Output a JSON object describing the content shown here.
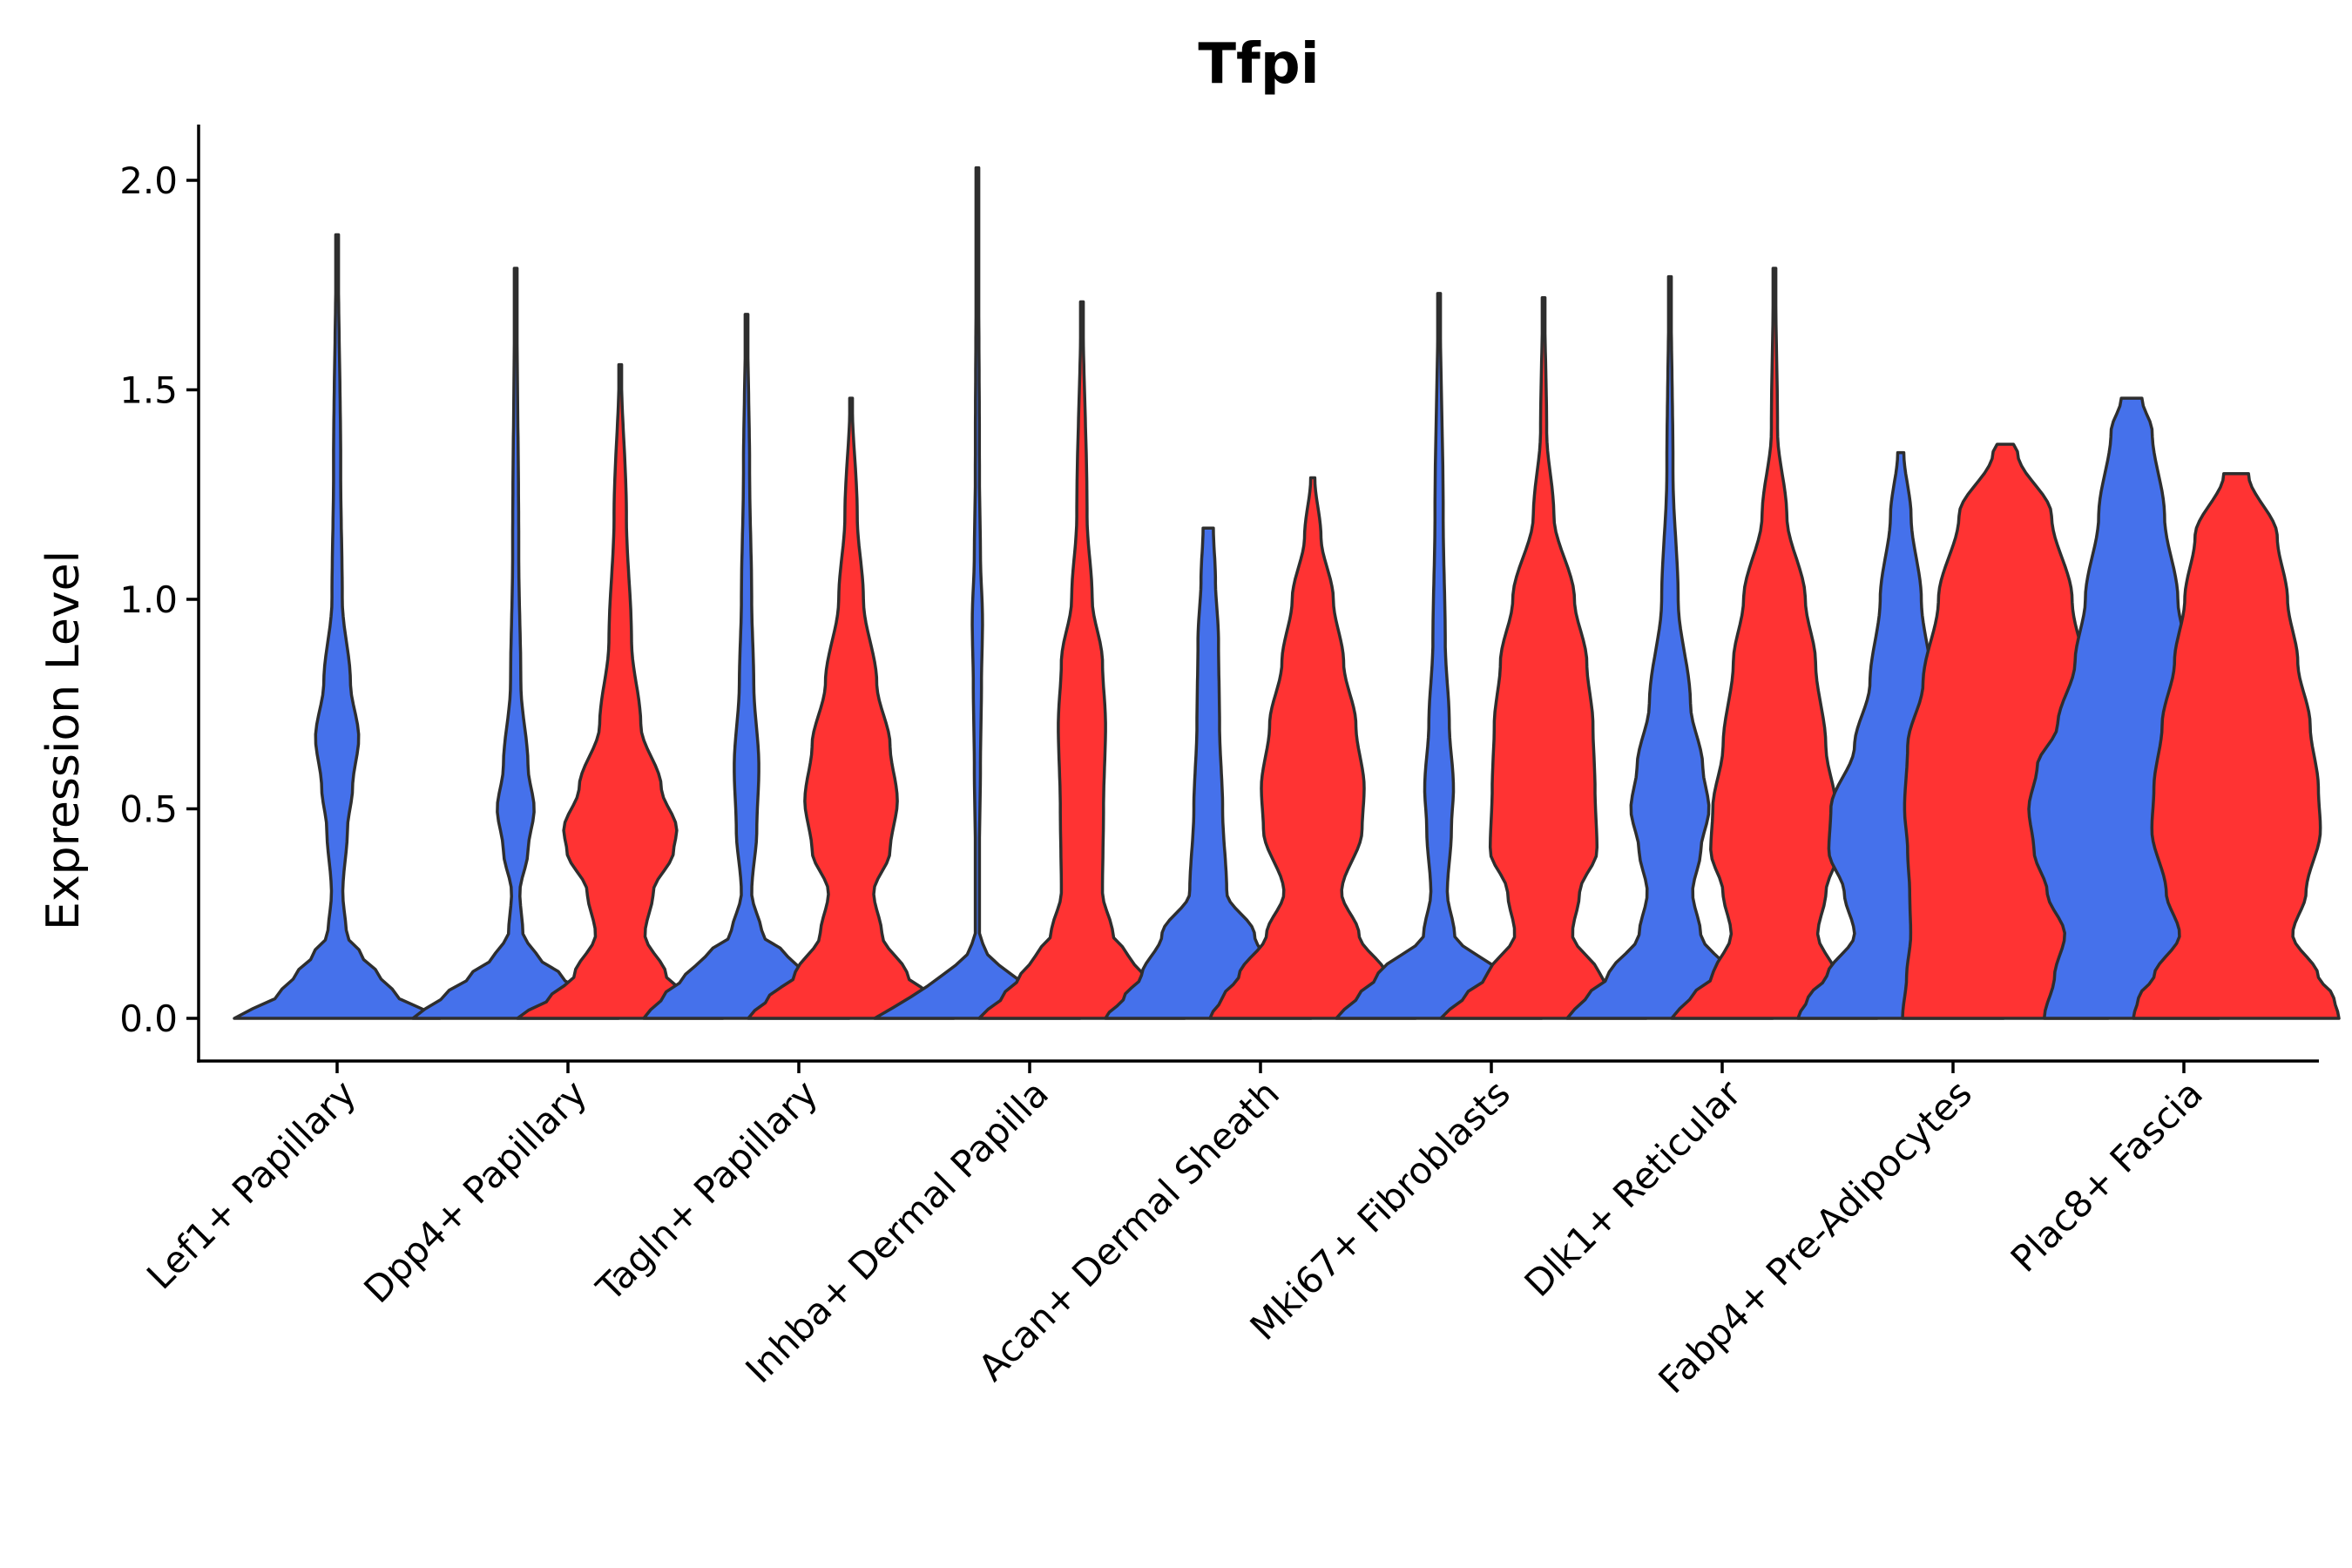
{
  "chart_data": {
    "type": "violin",
    "title": "Tfpi",
    "xlabel": "",
    "ylabel": "Expression Level",
    "ylim": [
      -0.1,
      2.13
    ],
    "yticks": [
      "0.0",
      "0.5",
      "1.0",
      "1.5",
      "2.0"
    ],
    "ytick_values": [
      0.0,
      0.5,
      1.0,
      1.5,
      2.0
    ],
    "groups": [
      "blue",
      "red"
    ],
    "colors": {
      "blue": "#4571EB",
      "red": "#FF3333",
      "outline": "#2e2e2e"
    },
    "categories": [
      {
        "label": "Lef1+ Papillary",
        "violins": [
          {
            "group": "blue",
            "max": 1.87,
            "profile": [
              [
                0,
                1.0
              ],
              [
                0.05,
                0.6
              ],
              [
                0.1,
                0.42
              ],
              [
                0.15,
                0.24
              ],
              [
                0.2,
                0.09
              ],
              [
                0.3,
                0.055
              ],
              [
                0.45,
                0.1
              ],
              [
                0.55,
                0.15
              ],
              [
                0.67,
                0.21
              ],
              [
                0.8,
                0.13
              ],
              [
                1.0,
                0.05
              ],
              [
                1.3,
                0.035
              ],
              [
                1.87,
                0.01
              ]
            ]
          }
        ]
      },
      {
        "label": "Dpp4+ Papillary",
        "violins": [
          {
            "group": "blue",
            "max": 1.79,
            "profile": [
              [
                0,
                1.0
              ],
              [
                0.05,
                0.72
              ],
              [
                0.1,
                0.45
              ],
              [
                0.15,
                0.2
              ],
              [
                0.2,
                0.07
              ],
              [
                0.3,
                0.04
              ],
              [
                0.4,
                0.12
              ],
              [
                0.5,
                0.18
              ],
              [
                0.6,
                0.12
              ],
              [
                0.8,
                0.05
              ],
              [
                1.1,
                0.03
              ],
              [
                1.79,
                0.01
              ]
            ]
          },
          {
            "group": "red",
            "max": 1.56,
            "profile": [
              [
                0,
                1.0
              ],
              [
                0.05,
                0.68
              ],
              [
                0.1,
                0.45
              ],
              [
                0.2,
                0.24
              ],
              [
                0.3,
                0.32
              ],
              [
                0.4,
                0.52
              ],
              [
                0.45,
                0.55
              ],
              [
                0.55,
                0.4
              ],
              [
                0.7,
                0.2
              ],
              [
                0.9,
                0.11
              ],
              [
                1.2,
                0.06
              ],
              [
                1.56,
                0.01
              ]
            ]
          }
        ]
      },
      {
        "label": "Tagln+ Papillary",
        "violins": [
          {
            "group": "blue",
            "max": 1.68,
            "profile": [
              [
                0,
                1.0
              ],
              [
                0.05,
                0.82
              ],
              [
                0.1,
                0.6
              ],
              [
                0.15,
                0.4
              ],
              [
                0.2,
                0.15
              ],
              [
                0.3,
                0.05
              ],
              [
                0.45,
                0.1
              ],
              [
                0.6,
                0.12
              ],
              [
                0.8,
                0.07
              ],
              [
                1.0,
                0.05
              ],
              [
                1.3,
                0.03
              ],
              [
                1.68,
                0.01
              ]
            ]
          },
          {
            "group": "red",
            "max": 1.48,
            "profile": [
              [
                0,
                1.0
              ],
              [
                0.05,
                0.8
              ],
              [
                0.1,
                0.55
              ],
              [
                0.2,
                0.3
              ],
              [
                0.3,
                0.22
              ],
              [
                0.4,
                0.38
              ],
              [
                0.52,
                0.45
              ],
              [
                0.65,
                0.38
              ],
              [
                0.8,
                0.25
              ],
              [
                1.0,
                0.12
              ],
              [
                1.2,
                0.06
              ],
              [
                1.48,
                0.01
              ]
            ]
          }
        ]
      },
      {
        "label": "Inhba+ Dermal Papilla",
        "violins": [
          {
            "group": "blue",
            "max": 2.03,
            "profile": [
              [
                0,
                1.0
              ],
              [
                0.05,
                0.65
              ],
              [
                0.1,
                0.35
              ],
              [
                0.15,
                0.1
              ],
              [
                0.2,
                0.02
              ],
              [
                0.4,
                0.02
              ],
              [
                0.6,
                0.03
              ],
              [
                0.8,
                0.04
              ],
              [
                0.95,
                0.05
              ],
              [
                1.1,
                0.03
              ],
              [
                1.3,
                0.02
              ],
              [
                2.03,
                0.008
              ]
            ]
          },
          {
            "group": "red",
            "max": 1.71,
            "profile": [
              [
                0,
                1.0
              ],
              [
                0.05,
                0.78
              ],
              [
                0.1,
                0.6
              ],
              [
                0.15,
                0.45
              ],
              [
                0.2,
                0.3
              ],
              [
                0.3,
                0.2
              ],
              [
                0.5,
                0.21
              ],
              [
                0.7,
                0.23
              ],
              [
                0.85,
                0.2
              ],
              [
                1.0,
                0.1
              ],
              [
                1.2,
                0.05
              ],
              [
                1.71,
                0.01
              ]
            ]
          }
        ]
      },
      {
        "label": "Acan+ Dermal Sheath",
        "violins": [
          {
            "group": "blue",
            "max": 1.17,
            "profile": [
              [
                0,
                1.0
              ],
              [
                0.05,
                0.82
              ],
              [
                0.1,
                0.65
              ],
              [
                0.2,
                0.45
              ],
              [
                0.3,
                0.18
              ],
              [
                0.5,
                0.14
              ],
              [
                0.7,
                0.11
              ],
              [
                0.9,
                0.1
              ],
              [
                1.05,
                0.07
              ],
              [
                1.17,
                0.05
              ]
            ]
          },
          {
            "group": "red",
            "max": 1.29,
            "profile": [
              [
                0,
                1.0
              ],
              [
                0.05,
                0.88
              ],
              [
                0.1,
                0.72
              ],
              [
                0.2,
                0.45
              ],
              [
                0.3,
                0.28
              ],
              [
                0.45,
                0.48
              ],
              [
                0.55,
                0.5
              ],
              [
                0.7,
                0.42
              ],
              [
                0.85,
                0.3
              ],
              [
                1.0,
                0.2
              ],
              [
                1.15,
                0.08
              ],
              [
                1.29,
                0.02
              ]
            ]
          }
        ]
      },
      {
        "label": "Mki67+ Fibroblasts",
        "violins": [
          {
            "group": "blue",
            "max": 1.73,
            "profile": [
              [
                0,
                1.0
              ],
              [
                0.05,
                0.8
              ],
              [
                0.1,
                0.6
              ],
              [
                0.2,
                0.15
              ],
              [
                0.3,
                0.08
              ],
              [
                0.45,
                0.12
              ],
              [
                0.55,
                0.14
              ],
              [
                0.7,
                0.1
              ],
              [
                0.9,
                0.06
              ],
              [
                1.2,
                0.04
              ],
              [
                1.73,
                0.01
              ]
            ]
          },
          {
            "group": "red",
            "max": 1.72,
            "profile": [
              [
                0,
                1.0
              ],
              [
                0.05,
                0.78
              ],
              [
                0.1,
                0.55
              ],
              [
                0.2,
                0.28
              ],
              [
                0.3,
                0.35
              ],
              [
                0.4,
                0.52
              ],
              [
                0.55,
                0.5
              ],
              [
                0.7,
                0.48
              ],
              [
                0.85,
                0.42
              ],
              [
                1.0,
                0.3
              ],
              [
                1.2,
                0.1
              ],
              [
                1.4,
                0.03
              ],
              [
                1.72,
                0.01
              ]
            ]
          }
        ]
      },
      {
        "label": "Dlk1+ Reticular",
        "violins": [
          {
            "group": "blue",
            "max": 1.77,
            "profile": [
              [
                0,
                1.0
              ],
              [
                0.05,
                0.82
              ],
              [
                0.1,
                0.6
              ],
              [
                0.2,
                0.3
              ],
              [
                0.3,
                0.22
              ],
              [
                0.4,
                0.3
              ],
              [
                0.5,
                0.38
              ],
              [
                0.6,
                0.32
              ],
              [
                0.75,
                0.2
              ],
              [
                1.0,
                0.08
              ],
              [
                1.3,
                0.03
              ],
              [
                1.77,
                0.01
              ]
            ]
          },
          {
            "group": "red",
            "max": 1.79,
            "profile": [
              [
                0,
                1.0
              ],
              [
                0.05,
                0.82
              ],
              [
                0.1,
                0.6
              ],
              [
                0.2,
                0.42
              ],
              [
                0.3,
                0.5
              ],
              [
                0.4,
                0.62
              ],
              [
                0.5,
                0.6
              ],
              [
                0.65,
                0.5
              ],
              [
                0.85,
                0.4
              ],
              [
                1.0,
                0.3
              ],
              [
                1.2,
                0.12
              ],
              [
                1.4,
                0.03
              ],
              [
                1.79,
                0.01
              ]
            ]
          }
        ]
      },
      {
        "label": "Fabp4+ Pre-Adipocytes",
        "violins": [
          {
            "group": "blue",
            "max": 1.35,
            "profile": [
              [
                0,
                1.0
              ],
              [
                0.05,
                0.9
              ],
              [
                0.1,
                0.72
              ],
              [
                0.2,
                0.45
              ],
              [
                0.3,
                0.55
              ],
              [
                0.4,
                0.7
              ],
              [
                0.5,
                0.68
              ],
              [
                0.65,
                0.45
              ],
              [
                0.8,
                0.3
              ],
              [
                1.0,
                0.2
              ],
              [
                1.2,
                0.1
              ],
              [
                1.35,
                0.03
              ]
            ]
          },
          {
            "group": "red",
            "max": 1.37,
            "profile": [
              [
                0,
                1.0
              ],
              [
                0.1,
                0.96
              ],
              [
                0.2,
                0.92
              ],
              [
                0.3,
                0.93
              ],
              [
                0.4,
                0.95
              ],
              [
                0.5,
                0.98
              ],
              [
                0.65,
                0.95
              ],
              [
                0.8,
                0.8
              ],
              [
                1.0,
                0.65
              ],
              [
                1.2,
                0.45
              ],
              [
                1.35,
                0.12
              ],
              [
                1.37,
                0.08
              ]
            ]
          }
        ]
      },
      {
        "label": "Plac8+ Fascia",
        "violins": [
          {
            "group": "blue",
            "max": 1.48,
            "profile": [
              [
                0,
                0.85
              ],
              [
                0.1,
                0.75
              ],
              [
                0.2,
                0.65
              ],
              [
                0.3,
                0.82
              ],
              [
                0.4,
                0.95
              ],
              [
                0.5,
                1.0
              ],
              [
                0.6,
                0.92
              ],
              [
                0.7,
                0.72
              ],
              [
                0.85,
                0.55
              ],
              [
                1.0,
                0.45
              ],
              [
                1.2,
                0.32
              ],
              [
                1.4,
                0.2
              ],
              [
                1.48,
                0.1
              ]
            ]
          },
          {
            "group": "red",
            "max": 1.3,
            "profile": [
              [
                0,
                1.0
              ],
              [
                0.05,
                0.95
              ],
              [
                0.1,
                0.8
              ],
              [
                0.2,
                0.55
              ],
              [
                0.3,
                0.68
              ],
              [
                0.45,
                0.82
              ],
              [
                0.55,
                0.8
              ],
              [
                0.7,
                0.72
              ],
              [
                0.85,
                0.6
              ],
              [
                1.0,
                0.5
              ],
              [
                1.15,
                0.4
              ],
              [
                1.3,
                0.12
              ]
            ]
          }
        ]
      }
    ]
  }
}
